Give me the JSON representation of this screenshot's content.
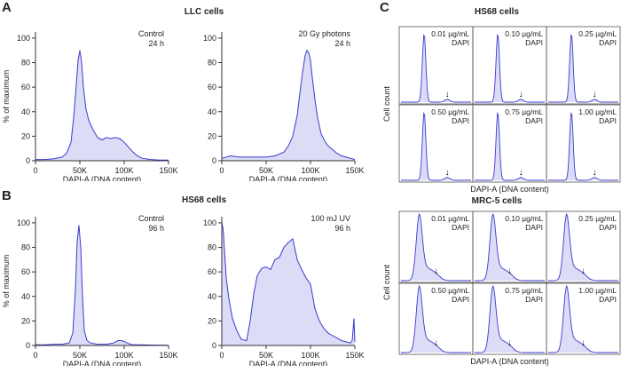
{
  "colors": {
    "line": "#3a3ad0",
    "fill": "#dcdcf6",
    "axis": "#333333",
    "text": "#222222"
  },
  "sections": {
    "A": {
      "letter": "A",
      "title": "LLC cells"
    },
    "B": {
      "letter": "B",
      "title": "HS68 cells"
    },
    "C": {
      "letter": "C",
      "hs68_title": "HS68 cells",
      "mrc5_title": "MRC-5 cells"
    }
  },
  "common": {
    "ylabel": "% of maximum",
    "xlabel": "DAPI-A (DNA content)",
    "grid_ylabel": "Cell count",
    "grid_xlabel": "DAPI-A (DNA content)",
    "dapi_word": "DAPI",
    "arrow_glyph": "↓"
  },
  "chart_data": [
    {
      "id": "A1",
      "type": "area",
      "title": "",
      "label_lines": [
        "Control",
        "24 h"
      ],
      "xlabel": "DAPI-A (DNA content)",
      "ylabel": "% of maximum",
      "xlim": [
        0,
        150000
      ],
      "ylim": [
        0,
        105
      ],
      "xticks": [
        0,
        50000,
        100000,
        150000
      ],
      "xtick_labels": [
        "0",
        "50K",
        "100K",
        "150K"
      ],
      "yticks": [
        0,
        20,
        40,
        60,
        80,
        100
      ],
      "ytick_labels": [
        "0",
        "20",
        "40",
        "60",
        "80",
        "100"
      ],
      "x": [
        0,
        10000,
        20000,
        30000,
        35000,
        40000,
        43000,
        46000,
        48000,
        50000,
        52000,
        54000,
        57000,
        60000,
        65000,
        70000,
        75000,
        80000,
        85000,
        90000,
        95000,
        100000,
        105000,
        110000,
        115000,
        120000,
        130000,
        140000,
        150000
      ],
      "y": [
        1,
        1,
        1.5,
        3,
        6,
        15,
        35,
        62,
        82,
        90,
        80,
        60,
        42,
        33,
        25,
        19,
        17,
        19,
        18,
        19,
        18,
        15,
        11,
        7,
        4,
        2,
        1,
        0.5,
        0.5
      ]
    },
    {
      "id": "A2",
      "type": "area",
      "title": "",
      "label_lines": [
        "20 Gy photons",
        "24 h"
      ],
      "xlabel": "DAPI-A (DNA content)",
      "ylabel": "",
      "xlim": [
        0,
        150000
      ],
      "ylim": [
        0,
        105
      ],
      "xticks": [
        0,
        50000,
        100000,
        150000
      ],
      "xtick_labels": [
        "0",
        "50K",
        "100K",
        "150K"
      ],
      "yticks": [
        0,
        20,
        40,
        60,
        80,
        100
      ],
      "ytick_labels": [
        "0",
        "20",
        "40",
        "60",
        "80",
        "100"
      ],
      "x": [
        0,
        10000,
        20000,
        30000,
        40000,
        50000,
        60000,
        70000,
        75000,
        80000,
        85000,
        88000,
        91000,
        94000,
        96000,
        98000,
        100000,
        102000,
        105000,
        108000,
        112000,
        116000,
        120000,
        125000,
        130000,
        135000,
        140000,
        145000,
        150000
      ],
      "y": [
        2,
        4,
        3,
        3,
        3,
        3,
        4,
        7,
        12,
        20,
        37,
        55,
        72,
        86,
        90,
        88,
        82,
        68,
        50,
        35,
        22,
        16,
        12,
        9,
        6,
        4,
        3,
        2,
        1
      ]
    },
    {
      "id": "B1",
      "type": "area",
      "title": "",
      "label_lines": [
        "Control",
        "96 h"
      ],
      "xlabel": "DAPI-A (DNA content)",
      "ylabel": "% of maximum",
      "xlim": [
        0,
        150000
      ],
      "ylim": [
        0,
        105
      ],
      "xticks": [
        0,
        50000,
        100000,
        150000
      ],
      "xtick_labels": [
        "0",
        "50K",
        "100K",
        "150K"
      ],
      "yticks": [
        0,
        20,
        40,
        60,
        80,
        100
      ],
      "ytick_labels": [
        "0",
        "20",
        "40",
        "60",
        "80",
        "100"
      ],
      "x": [
        0,
        10000,
        20000,
        30000,
        38000,
        42000,
        45000,
        47000,
        49000,
        51000,
        53000,
        55000,
        58000,
        62000,
        70000,
        80000,
        88000,
        93000,
        97000,
        101000,
        105000,
        110000,
        120000,
        135000,
        150000
      ],
      "y": [
        0.5,
        0.5,
        1,
        1,
        2,
        10,
        45,
        85,
        98,
        80,
        40,
        12,
        4,
        2,
        1,
        1,
        2,
        4,
        4,
        3,
        1.5,
        0.5,
        0.5,
        0.3,
        0.2
      ]
    },
    {
      "id": "B2",
      "type": "area",
      "title": "",
      "label_lines": [
        "100 mJ UV",
        "96 h"
      ],
      "xlabel": "DAPI-A (DNA content)",
      "ylabel": "",
      "xlim": [
        0,
        150000
      ],
      "ylim": [
        0,
        105
      ],
      "xticks": [
        0,
        50000,
        100000,
        150000
      ],
      "xtick_labels": [
        "0",
        "50K",
        "100K",
        "150K"
      ],
      "yticks": [
        0,
        20,
        40,
        60,
        80,
        100
      ],
      "ytick_labels": [
        "0",
        "20",
        "40",
        "60",
        "80",
        "100"
      ],
      "x": [
        0,
        1500,
        3000,
        5000,
        8000,
        12000,
        17000,
        22000,
        28000,
        32000,
        36000,
        40000,
        45000,
        50000,
        55000,
        60000,
        65000,
        70000,
        75000,
        80000,
        85000,
        90000,
        95000,
        100000,
        105000,
        110000,
        115000,
        120000,
        125000,
        130000,
        135000,
        140000,
        145000,
        147000,
        149000,
        150000
      ],
      "y": [
        100,
        95,
        78,
        55,
        38,
        22,
        12,
        5,
        4,
        20,
        42,
        57,
        63,
        64,
        62,
        70,
        72,
        80,
        84,
        87,
        70,
        62,
        55,
        50,
        30,
        20,
        14,
        10,
        8,
        6,
        4,
        3,
        2,
        4,
        22,
        3
      ]
    }
  ],
  "grid_hs68": [
    {
      "conc": "0.01 µg/mL"
    },
    {
      "conc": "0.10 µg/mL"
    },
    {
      "conc": "0.25 µg/mL"
    },
    {
      "conc": "0.50 µg/mL"
    },
    {
      "conc": "0.75 µg/mL"
    },
    {
      "conc": "1.00 µg/mL"
    }
  ],
  "grid_mrc5": [
    {
      "conc": "0.01 µg/mL"
    },
    {
      "conc": "0.10 µg/mL"
    },
    {
      "conc": "0.25 µg/mL"
    },
    {
      "conc": "0.50 µg/mL"
    },
    {
      "conc": "0.75 µg/mL"
    },
    {
      "conc": "1.00 µg/mL"
    }
  ],
  "grid_shapes": {
    "hs68": {
      "peak_x": 0.33,
      "peak_h": 0.95,
      "peak_w": 0.035,
      "g2_x": 0.66,
      "g2_h": 0.04,
      "g2_w": 0.05
    },
    "mrc5": {
      "peak_x": 0.26,
      "peak_h": 0.92,
      "peak_w": 0.06,
      "g2_x": 0.5,
      "g2_h": 0.07,
      "g2_w": 0.09
    }
  }
}
